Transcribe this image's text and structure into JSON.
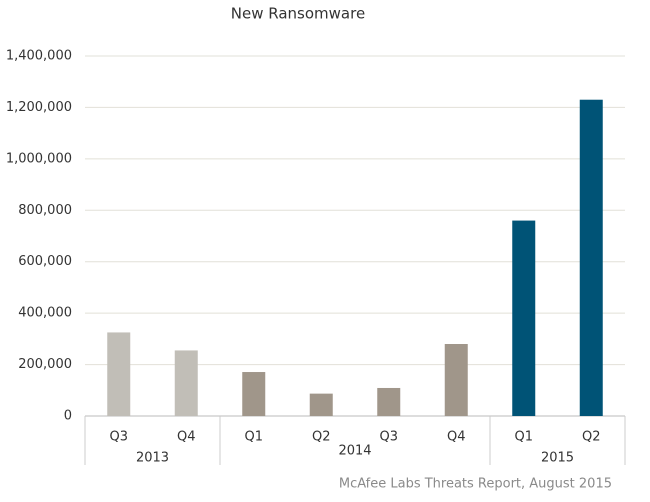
{
  "chart_data": {
    "type": "bar",
    "title": "New Ransomware",
    "categories": [
      "Q3",
      "Q4",
      "Q1",
      "Q2",
      "Q3",
      "Q4",
      "Q1",
      "Q2"
    ],
    "values": [
      325000,
      255000,
      171000,
      87000,
      109000,
      280000,
      760000,
      1230000
    ],
    "groups": [
      {
        "name": "2013",
        "size": 2,
        "color": "#c1beb7"
      },
      {
        "name": "2014",
        "size": 4,
        "color": "#a0968a"
      },
      {
        "name": "2015",
        "size": 2,
        "color": "#005376"
      }
    ],
    "ylim": [
      0,
      1400000
    ],
    "yticks": [
      0,
      {
        "value": 200000,
        "label": "200,000"
      },
      {
        "value": 400000,
        "label": "400,000"
      },
      {
        "value": 600000,
        "label": "600,000"
      },
      {
        "value": 800000,
        "label": "800,000"
      },
      {
        "value": 1000000,
        "label": "1,000,000"
      },
      {
        "value": 1200000,
        "label": "1,200,000"
      },
      {
        "value": 1400000,
        "label": "1,400,000"
      }
    ],
    "grid": true,
    "source": "McAfee Labs Threats Report, August 2015"
  }
}
